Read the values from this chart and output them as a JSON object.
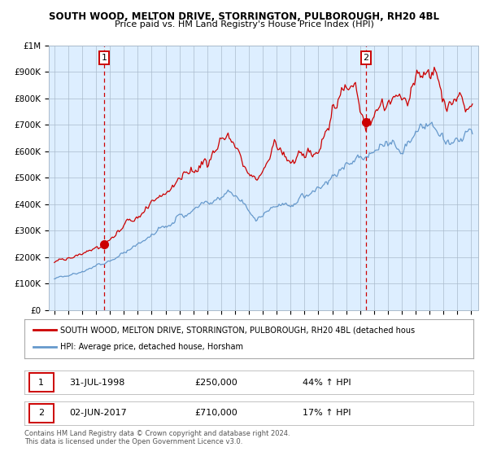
{
  "title1": "SOUTH WOOD, MELTON DRIVE, STORRINGTON, PULBOROUGH, RH20 4BL",
  "title2": "Price paid vs. HM Land Registry's House Price Index (HPI)",
  "legend_red": "SOUTH WOOD, MELTON DRIVE, STORRINGTON, PULBOROUGH, RH20 4BL (detached hous",
  "legend_blue": "HPI: Average price, detached house, Horsham",
  "annotation1_label": "1",
  "annotation1_date": "31-JUL-1998",
  "annotation1_price": "£250,000",
  "annotation1_hpi": "44% ↑ HPI",
  "annotation2_label": "2",
  "annotation2_date": "02-JUN-2017",
  "annotation2_price": "£710,000",
  "annotation2_hpi": "17% ↑ HPI",
  "footnote1": "Contains HM Land Registry data © Crown copyright and database right 2024.",
  "footnote2": "This data is licensed under the Open Government Licence v3.0.",
  "red_color": "#cc0000",
  "blue_color": "#6699cc",
  "bg_color": "#ddeeff",
  "grid_color": "#aabbcc",
  "annotation_box_color": "#cc0000",
  "ylim": [
    0,
    1000000
  ],
  "yticks": [
    0,
    100000,
    200000,
    300000,
    400000,
    500000,
    600000,
    700000,
    800000,
    900000,
    1000000
  ],
  "ytick_labels": [
    "£0",
    "£100K",
    "£200K",
    "£300K",
    "£400K",
    "£500K",
    "£600K",
    "£700K",
    "£800K",
    "£900K",
    "£1M"
  ],
  "sale1_year": 1998.58,
  "sale1_price": 250000,
  "sale2_year": 2017.42,
  "sale2_price": 710000,
  "vline1_year": 1998.58,
  "vline2_year": 2017.42,
  "xstart": 1995.0,
  "xend": 2025.08
}
